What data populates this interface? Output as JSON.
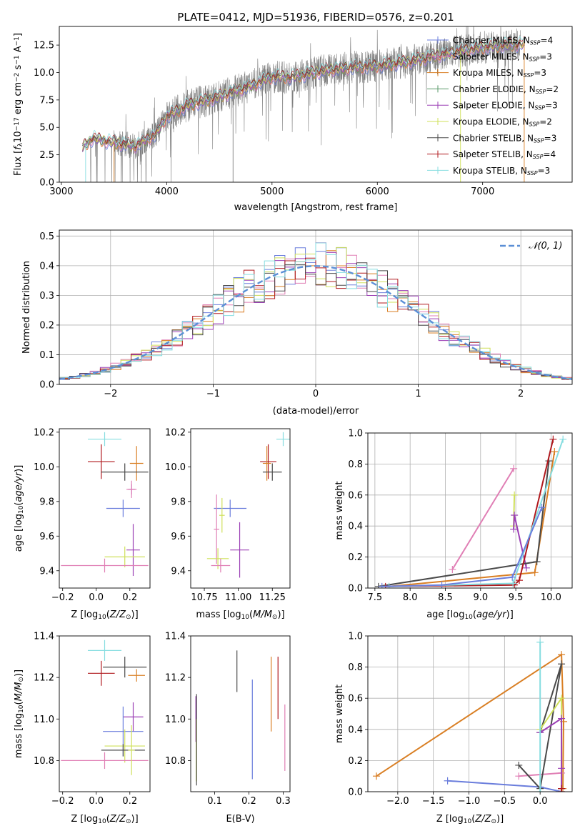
{
  "figure": {
    "title": "PLATE=0412, MJD=51936, FIBERID=0576, z=0.201"
  },
  "chart_data": [
    {
      "id": "spectrum",
      "type": "line",
      "xlabel": "wavelength [Angstrom, rest frame]",
      "ylabel": "Flux [f_λ10^-17 erg cm^-2 s^-1 A^-1]",
      "xlim": [
        2980,
        7850
      ],
      "ylim": [
        0,
        14.2
      ],
      "xticks": [
        3000,
        4000,
        5000,
        6000,
        7000
      ],
      "yticks": [
        0.0,
        2.5,
        5.0,
        7.5,
        10.0,
        12.5
      ],
      "xtick_labels": [
        "3000",
        "4000",
        "5000",
        "6000",
        "7000"
      ],
      "ytick_labels": [
        "0.0",
        "2.5",
        "5.0",
        "7.5",
        "10.0",
        "12.5"
      ],
      "legend_position": "top-right",
      "data_color": "#808080",
      "model_anchor": {
        "x": [
          3200,
          3300,
          3500,
          3700,
          3900,
          4000,
          4200,
          4500,
          4800,
          5000,
          5200,
          5500,
          5800,
          6000,
          6300,
          6600,
          6800,
          7100,
          7400
        ],
        "y": [
          3.2,
          4.0,
          3.6,
          3.3,
          4.4,
          6.0,
          7.0,
          7.8,
          8.8,
          9.6,
          9.6,
          10.2,
          10.5,
          10.6,
          11.0,
          11.6,
          12.0,
          12.4,
          12.6
        ]
      },
      "series": [
        {
          "name": "Chabrier MILES, N_SSP=4",
          "label_main": "Chabrier MILES, N",
          "label_sub": "SSP",
          "label_tail": "=4",
          "color": "#6a7ddc"
        },
        {
          "name": "Salpeter MILES, N_SSP=3",
          "label_main": "Salpeter MILES, N",
          "label_sub": "SSP",
          "label_tail": "=3",
          "color": "#e07fb5"
        },
        {
          "name": "Kroupa MILES, N_SSP=3",
          "label_main": "Kroupa MILES, N",
          "label_sub": "SSP",
          "label_tail": "=3",
          "color": "#d97f24"
        },
        {
          "name": "Chabrier ELODIE, N_SSP=2",
          "label_main": "Chabrier ELODIE, N",
          "label_sub": "SSP",
          "label_tail": "=2",
          "color": "#5a9a6a"
        },
        {
          "name": "Salpeter ELODIE, N_SSP=3",
          "label_main": "Salpeter ELODIE, N",
          "label_sub": "SSP",
          "label_tail": "=3",
          "color": "#9b3fb5"
        },
        {
          "name": "Kroupa ELODIE, N_SSP=2",
          "label_main": "Kroupa ELODIE, N",
          "label_sub": "SSP",
          "label_tail": "=2",
          "color": "#cfe05a"
        },
        {
          "name": "Chabrier STELIB, N_SSP=3",
          "label_main": "Chabrier STELIB, N",
          "label_sub": "SSP",
          "label_tail": "=3",
          "color": "#4a4a4a"
        },
        {
          "name": "Salpeter STELIB, N_SSP=4",
          "label_main": "Salpeter STELIB, N",
          "label_sub": "SSP",
          "label_tail": "=4",
          "color": "#b0191e"
        },
        {
          "name": "Kroupa STELIB, N_SSP=3",
          "label_main": "Kroupa STELIB, N",
          "label_sub": "SSP",
          "label_tail": "=3",
          "color": "#86dde0"
        }
      ]
    },
    {
      "id": "residuals",
      "type": "line",
      "xlabel": "(data-model)/error",
      "ylabel": "Normed distribution",
      "xlim": [
        -2.5,
        2.5
      ],
      "ylim": [
        0,
        0.52
      ],
      "xticks": [
        -2,
        -1,
        0,
        1,
        2
      ],
      "xtick_labels": [
        "−2",
        "−1",
        "0",
        "1",
        "2"
      ],
      "yticks": [
        0.0,
        0.1,
        0.2,
        0.3,
        0.4,
        0.5
      ],
      "ytick_labels": [
        "0.0",
        "0.1",
        "0.2",
        "0.3",
        "0.4",
        "0.5"
      ],
      "grid": true,
      "legend_position": "top-right",
      "reference_curve": {
        "name": "𝒩(0, 1)",
        "color": "#5b8fd6",
        "style": "dashed"
      },
      "bin_width": 0.1,
      "histogram_colors": [
        "#6a7ddc",
        "#e07fb5",
        "#d97f24",
        "#cfe05a",
        "#9b3fb5",
        "#b0191e",
        "#4a4a4a",
        "#86dde0"
      ]
    },
    {
      "id": "age_vs_Z",
      "type": "scatter",
      "xlabel": "Z [log10(Z/Z⊙)]",
      "ylabel": "age [log10(age/yr)]",
      "xlim": [
        -0.22,
        0.32
      ],
      "ylim": [
        9.3,
        10.22
      ],
      "xticks": [
        -0.2,
        0.0,
        0.2
      ],
      "xtick_labels": [
        "−0.2",
        "0.0",
        "0.2"
      ],
      "yticks": [
        9.4,
        9.6,
        9.8,
        10.0,
        10.2
      ],
      "ytick_labels": [
        "9.4",
        "9.6",
        "9.8",
        "10.0",
        "10.2"
      ],
      "points": [
        {
          "x": 0.05,
          "xerr": 0.1,
          "y": 10.16,
          "yerr": 0.04,
          "color": "#86dde0"
        },
        {
          "x": 0.03,
          "xerr": 0.08,
          "y": 10.03,
          "yerr": 0.1,
          "color": "#b0191e"
        },
        {
          "x": 0.24,
          "xerr": 0.04,
          "y": 10.02,
          "yerr": 0.1,
          "color": "#d97f24"
        },
        {
          "x": 0.17,
          "xerr": 0.14,
          "y": 9.97,
          "yerr": 0.05,
          "color": "#4a4a4a"
        },
        {
          "x": 0.21,
          "xerr": 0.02,
          "y": 9.87,
          "yerr": 0.03,
          "color": "#9b3fb5"
        },
        {
          "x": 0.21,
          "xerr": 0.03,
          "y": 9.87,
          "yerr": 0.05,
          "color": "#e07fb5"
        },
        {
          "x": 0.16,
          "xerr": 0.1,
          "y": 9.76,
          "yerr": 0.05,
          "color": "#6a7ddc"
        },
        {
          "x": 0.22,
          "xerr": 0.04,
          "y": 9.52,
          "yerr": 0.15,
          "color": "#9b3fb5"
        },
        {
          "x": 0.17,
          "xerr": 0.12,
          "y": 9.48,
          "yerr": 0.06,
          "color": "#cfe05a"
        },
        {
          "x": 0.05,
          "xerr": 0.26,
          "y": 9.43,
          "yerr": 0.04,
          "color": "#e07fb5"
        }
      ]
    },
    {
      "id": "age_vs_mass",
      "type": "scatter",
      "xlabel": "mass [log10(M/M⊙)]",
      "ylabel": "",
      "xlim": [
        10.65,
        11.38
      ],
      "ylim": [
        9.3,
        10.22
      ],
      "xticks": [
        10.75,
        11.0,
        11.25
      ],
      "xtick_labels": [
        "10.75",
        "11.00",
        "11.25"
      ],
      "yticks": [
        9.4,
        9.6,
        9.8,
        10.0,
        10.2
      ],
      "ytick_labels": [
        "9.4",
        "9.6",
        "9.8",
        "10.0",
        "10.2"
      ],
      "points": [
        {
          "x": 11.33,
          "xerr": 0.05,
          "y": 10.16,
          "yerr": 0.04,
          "color": "#86dde0"
        },
        {
          "x": 11.22,
          "xerr": 0.06,
          "y": 10.03,
          "yerr": 0.1,
          "color": "#b0191e"
        },
        {
          "x": 11.21,
          "xerr": 0.03,
          "y": 10.02,
          "yerr": 0.1,
          "color": "#d97f24"
        },
        {
          "x": 11.25,
          "xerr": 0.07,
          "y": 9.97,
          "yerr": 0.05,
          "color": "#4a4a4a"
        },
        {
          "x": 10.94,
          "xerr": 0.12,
          "y": 9.76,
          "yerr": 0.05,
          "color": "#6a7ddc"
        },
        {
          "x": 10.84,
          "xerr": 0.02,
          "y": 9.64,
          "yerr": 0.2,
          "color": "#e07fb5"
        },
        {
          "x": 10.88,
          "xerr": 0.02,
          "y": 9.72,
          "yerr": 0.1,
          "color": "#cfe05a"
        },
        {
          "x": 11.01,
          "xerr": 0.07,
          "y": 9.52,
          "yerr": 0.16,
          "color": "#9b3fb5"
        },
        {
          "x": 10.85,
          "xerr": 0.08,
          "y": 9.47,
          "yerr": 0.06,
          "color": "#cfe05a"
        },
        {
          "x": 10.87,
          "xerr": 0.07,
          "y": 9.43,
          "yerr": 0.04,
          "color": "#e07fb5"
        }
      ]
    },
    {
      "id": "mass_weight_vs_age",
      "type": "line",
      "xlabel": "age [log10(age/yr)]",
      "ylabel": "mass weight",
      "xlim": [
        7.4,
        10.3
      ],
      "ylim": [
        0,
        1
      ],
      "xticks": [
        7.5,
        8.0,
        8.5,
        9.0,
        9.5,
        10.0
      ],
      "xtick_labels": [
        "7.5",
        "8.0",
        "8.5",
        "9.0",
        "9.5",
        "10.0"
      ],
      "yticks": [
        0.0,
        0.2,
        0.4,
        0.6,
        0.8,
        1.0
      ],
      "ytick_labels": [
        "0.0",
        "0.2",
        "0.4",
        "0.6",
        "0.8",
        "1.0"
      ],
      "grid": true,
      "series": [
        {
          "color": "#e07fb5",
          "x": [
            8.6,
            9.47
          ],
          "y": [
            0.12,
            0.77
          ]
        },
        {
          "color": "#cfe05a",
          "x": [
            9.47,
            9.48
          ],
          "y": [
            0.4,
            0.6
          ]
        },
        {
          "color": "#9b3fb5",
          "x": [
            9.47,
            9.48,
            9.65
          ],
          "y": [
            0.38,
            0.47,
            0.13
          ]
        },
        {
          "color": "#d97f24",
          "x": [
            7.7,
            9.77,
            10.05
          ],
          "y": [
            0.01,
            0.1,
            0.88
          ]
        },
        {
          "color": "#4a4a4a",
          "x": [
            7.55,
            9.8,
            9.97
          ],
          "y": [
            0.01,
            0.17,
            0.82
          ]
        },
        {
          "color": "#b0191e",
          "x": [
            7.65,
            9.48,
            9.55,
            10.03
          ],
          "y": [
            0.01,
            0.02,
            0.05,
            0.96
          ]
        },
        {
          "color": "#86dde0",
          "x": [
            7.7,
            9.46,
            10.17
          ],
          "y": [
            0.01,
            0.03,
            0.96
          ]
        },
        {
          "color": "#6a7ddc",
          "x": [
            7.6,
            8.45,
            9.45,
            9.87
          ],
          "y": [
            0.01,
            0.02,
            0.07,
            0.52
          ]
        }
      ]
    },
    {
      "id": "mass_vs_Z",
      "type": "scatter",
      "xlabel": "Z [log10(Z/Z⊙)]",
      "ylabel": "mass [log10(M/M⊙)]",
      "xlim": [
        -0.22,
        0.32
      ],
      "ylim": [
        10.65,
        11.4
      ],
      "xticks": [
        -0.2,
        0.0,
        0.2
      ],
      "xtick_labels": [
        "−0.2",
        "0.0",
        "0.2"
      ],
      "yticks": [
        10.8,
        11.0,
        11.2,
        11.4
      ],
      "ytick_labels": [
        "10.8",
        "11.0",
        "11.2",
        "11.4"
      ],
      "points": [
        {
          "x": 0.05,
          "xerr": 0.1,
          "y": 11.33,
          "yerr": 0.05,
          "color": "#86dde0"
        },
        {
          "x": 0.03,
          "xerr": 0.08,
          "y": 11.22,
          "yerr": 0.06,
          "color": "#b0191e"
        },
        {
          "x": 0.24,
          "xerr": 0.05,
          "y": 11.21,
          "yerr": 0.03,
          "color": "#d97f24"
        },
        {
          "x": 0.17,
          "xerr": 0.13,
          "y": 11.25,
          "yerr": 0.05,
          "color": "#4a4a4a"
        },
        {
          "x": 0.22,
          "xerr": 0.06,
          "y": 11.01,
          "yerr": 0.07,
          "color": "#9b3fb5"
        },
        {
          "x": 0.16,
          "xerr": 0.12,
          "y": 10.94,
          "yerr": 0.12,
          "color": "#6a7ddc"
        },
        {
          "x": 0.17,
          "xerr": 0.12,
          "y": 10.87,
          "yerr": 0.08,
          "color": "#cfe05a"
        },
        {
          "x": 0.16,
          "xerr": 0.13,
          "y": 10.85,
          "yerr": 0.03,
          "color": "#4a4a4a"
        },
        {
          "x": 0.05,
          "xerr": 0.26,
          "y": 10.8,
          "yerr": 0.04,
          "color": "#e07fb5"
        },
        {
          "x": 0.21,
          "xerr": 0.02,
          "y": 10.85,
          "yerr": 0.12,
          "color": "#cfe05a"
        }
      ]
    },
    {
      "id": "mass_vs_ebv",
      "type": "scatter",
      "xlabel": "E(B-V)",
      "ylabel": "",
      "xlim": [
        0.03,
        0.32
      ],
      "ylim": [
        10.65,
        11.4
      ],
      "xticks": [
        0.1,
        0.2,
        0.3
      ],
      "xtick_labels": [
        "0.1",
        "0.2",
        "0.3"
      ],
      "yticks": [
        10.8,
        11.0,
        11.2,
        11.4
      ],
      "ytick_labels": [
        "10.8",
        "11.0",
        "11.2",
        "11.4"
      ],
      "points": [
        {
          "x": 0.045,
          "y": 11.0,
          "yerr": 0.11,
          "color": "#9b3fb5"
        },
        {
          "x": 0.046,
          "y": 10.85,
          "yerr": 0.15,
          "color": "#cfe05a"
        },
        {
          "x": 0.047,
          "y": 10.9,
          "yerr": 0.22,
          "color": "#4a4a4a"
        },
        {
          "x": 0.165,
          "y": 11.23,
          "yerr": 0.1,
          "color": "#4a4a4a"
        },
        {
          "x": 0.21,
          "y": 10.95,
          "yerr": 0.24,
          "color": "#6a7ddc"
        },
        {
          "x": 0.265,
          "y": 11.12,
          "yerr": 0.18,
          "color": "#d97f24"
        },
        {
          "x": 0.285,
          "y": 11.15,
          "yerr": 0.15,
          "color": "#b0191e"
        },
        {
          "x": 0.305,
          "y": 10.91,
          "yerr": 0.16,
          "color": "#e07fb5"
        }
      ]
    },
    {
      "id": "mass_weight_vs_Z",
      "type": "line",
      "xlabel": "Z [log10(Z/Z⊙)]",
      "ylabel": "mass weight",
      "xlim": [
        -2.42,
        0.45
      ],
      "ylim": [
        0,
        1
      ],
      "xticks": [
        -2.0,
        -1.5,
        -1.0,
        -0.5,
        0.0
      ],
      "xtick_labels": [
        "−2.0",
        "−1.5",
        "−1.0",
        "−0.5",
        "0.0"
      ],
      "yticks": [
        0.0,
        0.2,
        0.4,
        0.6,
        0.8,
        1.0
      ],
      "ytick_labels": [
        "0.0",
        "0.2",
        "0.4",
        "0.6",
        "0.8",
        "1.0"
      ],
      "grid": true,
      "series": [
        {
          "color": "#d97f24",
          "x": [
            -2.3,
            0.3,
            0.33,
            0.32
          ],
          "y": [
            0.1,
            0.88,
            0.45,
            0.02
          ]
        },
        {
          "color": "#6a7ddc",
          "x": [
            -1.3,
            0.0,
            0.3
          ],
          "y": [
            0.07,
            0.03,
            0.0
          ]
        },
        {
          "color": "#e07fb5",
          "x": [
            -0.3,
            0.3
          ],
          "y": [
            0.1,
            0.12
          ]
        },
        {
          "color": "#4a4a4a",
          "x": [
            -0.3,
            0.0,
            0.3,
            0.0
          ],
          "y": [
            0.17,
            0.02,
            0.82,
            0.38
          ]
        },
        {
          "color": "#cfe05a",
          "x": [
            0.0,
            0.3,
            0.3
          ],
          "y": [
            0.4,
            0.6,
            0.02
          ]
        },
        {
          "color": "#9b3fb5",
          "x": [
            0.0,
            0.3,
            0.3,
            0.3
          ],
          "y": [
            0.38,
            0.47,
            0.15,
            0.02
          ]
        },
        {
          "color": "#86dde0",
          "x": [
            0.0,
            0.0
          ],
          "y": [
            0.96,
            0.0
          ]
        },
        {
          "color": "#b0191e",
          "x": [
            0.3,
            0.3
          ],
          "y": [
            0.02,
            0.0
          ]
        }
      ]
    }
  ]
}
